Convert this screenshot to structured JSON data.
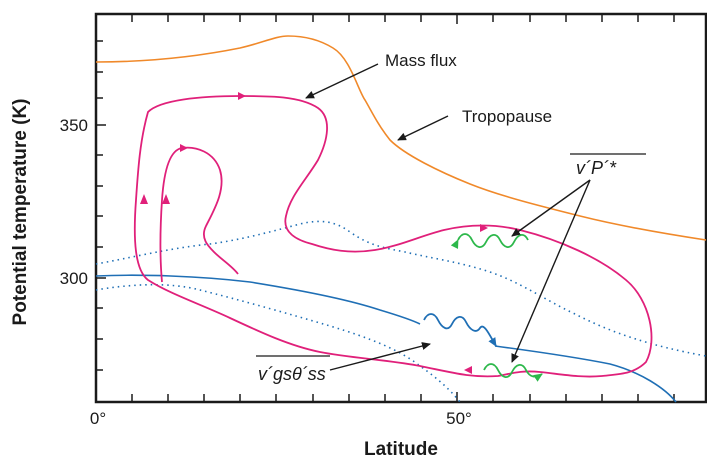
{
  "axes": {
    "xlabel": "Latitude",
    "ylabel": "Potential temperature (K)",
    "x_ticks": [
      "0°",
      "50°"
    ],
    "y_ticks": [
      "300",
      "350"
    ]
  },
  "labels": {
    "mass_flux": "Mass flux",
    "tropopause": "Tropopause",
    "eddy_pressure_flux": "v´P´*",
    "eddy_heat_flux": "v´gsθ´ss"
  },
  "colors": {
    "tropopause": "#f0892a",
    "mass_flux": "#e0207a",
    "isentrope": "#1f6fb5",
    "wave_green": "#2db84b",
    "wave_blue": "#1f6fb5"
  }
}
